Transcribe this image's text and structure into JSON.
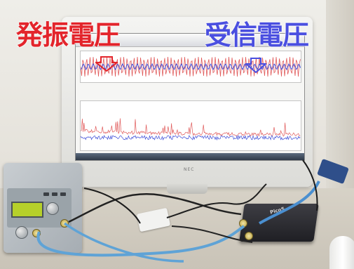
{
  "annotations": {
    "oscillation_voltage": "発振電圧",
    "received_voltage": "受信電圧"
  },
  "monitor": {
    "brand": "NEC"
  },
  "scope_device": {
    "logo": "PicoS"
  },
  "colors": {
    "oscillation_label": "#e3242b",
    "received_label": "#4a4fe0",
    "waveform_red": "#e05a5a",
    "waveform_blue": "#3b4bd8",
    "cable_blue": "#5fa3d6"
  },
  "icons": {
    "oscillation_arrow": "down-arrow-outline-red",
    "received_arrow": "down-arrow-outline-blue"
  }
}
